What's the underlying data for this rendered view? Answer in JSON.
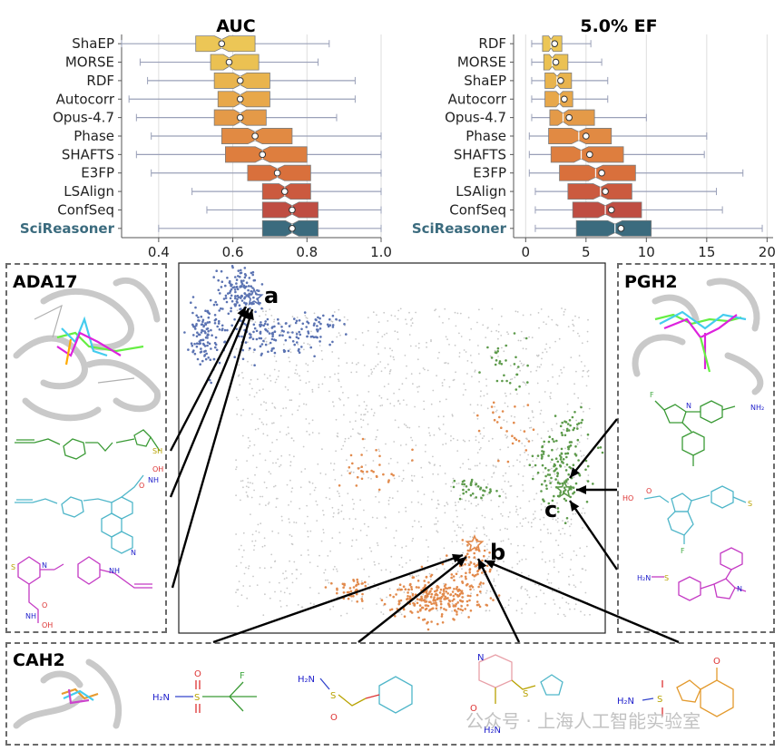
{
  "chart_data": [
    {
      "type": "boxplot",
      "orientation": "horizontal",
      "title": "AUC",
      "xlim": [
        0.3,
        1.0
      ],
      "xticks": [
        "0.4",
        "0.6",
        "0.8",
        "1.0"
      ],
      "tick_values": [
        0.4,
        0.6,
        0.8,
        1.0
      ],
      "grid": true,
      "categories": [
        "ShaEP",
        "MORSE",
        "RDF",
        "Autocorr",
        "Opus-4.7",
        "Phase",
        "SHAFTS",
        "E3FP",
        "LSAlign",
        "ConfSeq",
        "SciReasoner"
      ],
      "highlight_category": "SciReasoner",
      "colors": [
        "#ecc656",
        "#ebc152",
        "#e9b44d",
        "#e8a84a",
        "#e49a48",
        "#e18a43",
        "#de7e3e",
        "#d9703c",
        "#cb5a3f",
        "#bf4d42",
        "#3b6b7e"
      ],
      "boxes": [
        {
          "whisker_low": 0.3,
          "q1": 0.5,
          "median": 0.57,
          "mean": 0.57,
          "q3": 0.66,
          "whisker_high": 0.86
        },
        {
          "whisker_low": 0.35,
          "q1": 0.54,
          "median": 0.59,
          "mean": 0.59,
          "q3": 0.67,
          "whisker_high": 0.83
        },
        {
          "whisker_low": 0.37,
          "q1": 0.55,
          "median": 0.62,
          "mean": 0.62,
          "q3": 0.7,
          "whisker_high": 0.93
        },
        {
          "whisker_low": 0.32,
          "q1": 0.56,
          "median": 0.62,
          "mean": 0.62,
          "q3": 0.7,
          "whisker_high": 0.93
        },
        {
          "whisker_low": 0.34,
          "q1": 0.55,
          "median": 0.62,
          "mean": 0.62,
          "q3": 0.69,
          "whisker_high": 0.88
        },
        {
          "whisker_low": 0.38,
          "q1": 0.57,
          "median": 0.66,
          "mean": 0.66,
          "q3": 0.76,
          "whisker_high": 1.0
        },
        {
          "whisker_low": 0.34,
          "q1": 0.58,
          "median": 0.68,
          "mean": 0.68,
          "q3": 0.8,
          "whisker_high": 1.0
        },
        {
          "whisker_low": 0.38,
          "q1": 0.64,
          "median": 0.72,
          "mean": 0.72,
          "q3": 0.81,
          "whisker_high": 1.0
        },
        {
          "whisker_low": 0.49,
          "q1": 0.68,
          "median": 0.74,
          "mean": 0.74,
          "q3": 0.81,
          "whisker_high": 1.0
        },
        {
          "whisker_low": 0.53,
          "q1": 0.68,
          "median": 0.76,
          "mean": 0.76,
          "q3": 0.83,
          "whisker_high": 1.0
        },
        {
          "whisker_low": 0.4,
          "q1": 0.68,
          "median": 0.76,
          "mean": 0.76,
          "q3": 0.83,
          "whisker_high": 1.0
        }
      ]
    },
    {
      "type": "boxplot",
      "orientation": "horizontal",
      "title": "5.0% EF",
      "xlim": [
        -1,
        20.5
      ],
      "xticks": [
        "0",
        "5",
        "10",
        "15",
        "20"
      ],
      "tick_values": [
        0,
        5,
        10,
        15,
        20
      ],
      "grid": true,
      "categories": [
        "RDF",
        "MORSE",
        "ShaEP",
        "Autocorr",
        "Opus-4.7",
        "Phase",
        "SHAFTS",
        "E3FP",
        "LSAlign",
        "ConfSeq",
        "SciReasoner"
      ],
      "highlight_category": "SciReasoner",
      "colors": [
        "#ecc656",
        "#ebc152",
        "#e9b44d",
        "#e8a84a",
        "#e49a48",
        "#e18a43",
        "#de7e3e",
        "#d9703c",
        "#cb5a3f",
        "#bf4d42",
        "#3b6b7e"
      ],
      "boxes": [
        {
          "whisker_low": 0.5,
          "q1": 1.4,
          "median": 2.1,
          "mean": 2.4,
          "q3": 3.0,
          "whisker_high": 5.4
        },
        {
          "whisker_low": 0.5,
          "q1": 1.5,
          "median": 2.2,
          "mean": 2.5,
          "q3": 3.5,
          "whisker_high": 6.3
        },
        {
          "whisker_low": 0.5,
          "q1": 1.6,
          "median": 2.6,
          "mean": 2.9,
          "q3": 3.8,
          "whisker_high": 6.8
        },
        {
          "whisker_low": 0.5,
          "q1": 1.6,
          "median": 2.8,
          "mean": 3.2,
          "q3": 3.9,
          "whisker_high": 6.8
        },
        {
          "whisker_low": 0.5,
          "q1": 2.0,
          "median": 3.1,
          "mean": 3.6,
          "q3": 5.7,
          "whisker_high": 10.0
        },
        {
          "whisker_low": 0.3,
          "q1": 1.9,
          "median": 4.4,
          "mean": 5.0,
          "q3": 7.1,
          "whisker_high": 15.0
        },
        {
          "whisker_low": 0.3,
          "q1": 2.1,
          "median": 4.6,
          "mean": 5.3,
          "q3": 8.1,
          "whisker_high": 14.8
        },
        {
          "whisker_low": 0.3,
          "q1": 2.8,
          "median": 5.8,
          "mean": 6.3,
          "q3": 9.1,
          "whisker_high": 18.0
        },
        {
          "whisker_low": 0.8,
          "q1": 3.5,
          "median": 6.2,
          "mean": 6.6,
          "q3": 8.8,
          "whisker_high": 15.8
        },
        {
          "whisker_low": 0.8,
          "q1": 3.9,
          "median": 6.6,
          "mean": 7.1,
          "q3": 9.6,
          "whisker_high": 16.3
        },
        {
          "whisker_low": 0.8,
          "q1": 4.2,
          "median": 7.4,
          "mean": 7.9,
          "q3": 10.4,
          "whisker_high": 19.6
        }
      ]
    },
    {
      "type": "scatter",
      "title": "",
      "xlabel": "",
      "ylabel": "",
      "clusters": [
        {
          "name": "ADA17",
          "label": "a",
          "color": "#5b73b2"
        },
        {
          "name": "CAH2",
          "label": "b",
          "color": "#e28a4c"
        },
        {
          "name": "PGH2",
          "label": "c",
          "color": "#5c9a4a"
        }
      ],
      "background_color": "#c8c8c8"
    }
  ],
  "panels": {
    "ada17": {
      "title": "ADA17"
    },
    "pgh2": {
      "title": "PGH2"
    },
    "cah2": {
      "title": "CAH2"
    }
  },
  "markers": {
    "a": "a",
    "b": "b",
    "c": "c"
  },
  "mol_labels": {
    "ada17_m1_sh": "SH",
    "ada17_m2_o": "O",
    "ada17_m2_nh": "NH",
    "ada17_m2_oh": "OH",
    "ada17_m2_n": "N",
    "ada17_m3_s": "S",
    "ada17_m3_n": "N",
    "ada17_m3_nh": "NH",
    "ada17_m3_o": "O",
    "ada17_m3_nh2": "NH",
    "ada17_m3_oh": "OH",
    "pgh2_m1_f": "F",
    "pgh2_m1_n": "N",
    "pgh2_m1_nh2": "NH₂",
    "pgh2_m2_ho": "HO",
    "pgh2_m2_o": "O",
    "pgh2_m2_f": "F",
    "pgh2_m2_s": "S",
    "pgh2_m3_h2n": "H₂N",
    "pgh2_m3_s": "S",
    "pgh2_m3_n": "N",
    "cah2_m1_h2n": "H₂N",
    "cah2_m1_s": "S",
    "cah2_m1_o": "O",
    "cah2_m1_f": "F",
    "cah2_m2_h2n": "H₂N",
    "cah2_m2_s": "S",
    "cah2_m2_o": "O",
    "cah2_m3_n": "N",
    "cah2_m3_s": "S",
    "cah2_m3_o": "O",
    "cah2_m3_h2n": "H₂N",
    "cah2_m4_h2n": "H₂N",
    "cah2_m4_s": "S",
    "cah2_m4_o": "O"
  },
  "watermark": {
    "text": "公众号 · 上海人工智能实验室"
  }
}
